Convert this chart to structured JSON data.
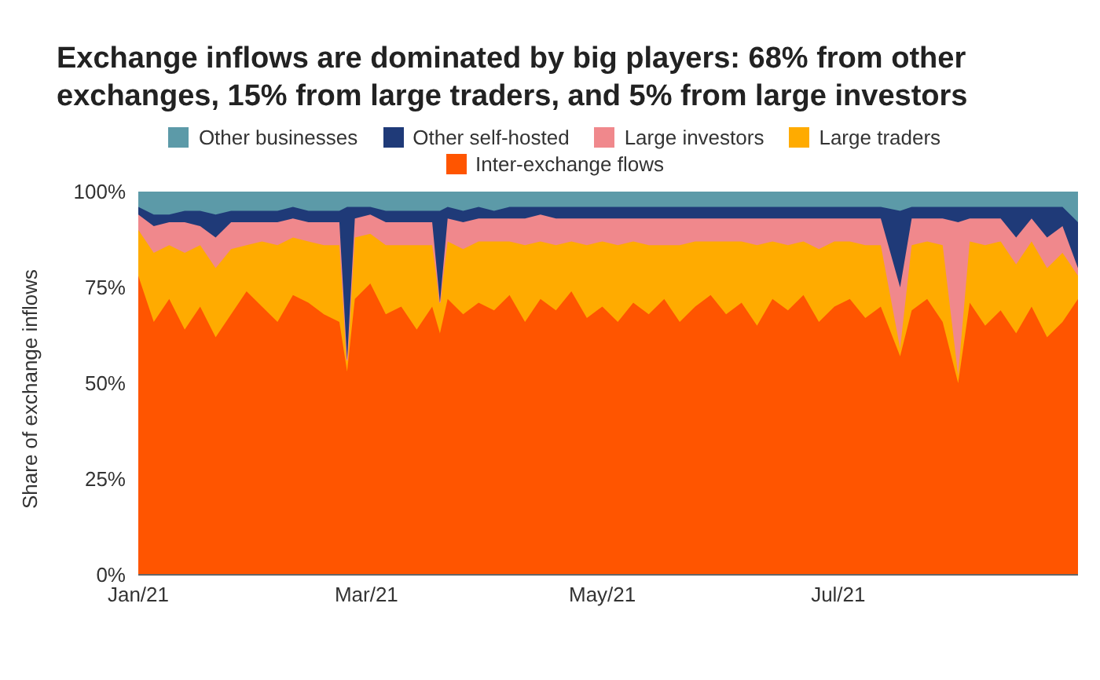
{
  "chart_data": {
    "type": "area",
    "title": "Exchange inflows are dominated by big players: 68% from other exchanges, 15% from large traders, and 5% from large investors",
    "ylabel": "Share of exchange inflows",
    "stacked": true,
    "legend": "top",
    "x": [
      "2021-01-01",
      "2021-01-05",
      "2021-01-09",
      "2021-01-13",
      "2021-01-17",
      "2021-01-21",
      "2021-01-25",
      "2021-01-29",
      "2021-02-02",
      "2021-02-06",
      "2021-02-10",
      "2021-02-14",
      "2021-02-18",
      "2021-02-22",
      "2021-02-24",
      "2021-02-26",
      "2021-03-02",
      "2021-03-06",
      "2021-03-10",
      "2021-03-14",
      "2021-03-18",
      "2021-03-20",
      "2021-03-22",
      "2021-03-26",
      "2021-03-30",
      "2021-04-03",
      "2021-04-07",
      "2021-04-11",
      "2021-04-15",
      "2021-04-19",
      "2021-04-23",
      "2021-04-27",
      "2021-05-01",
      "2021-05-05",
      "2021-05-09",
      "2021-05-13",
      "2021-05-17",
      "2021-05-21",
      "2021-05-25",
      "2021-05-29",
      "2021-06-02",
      "2021-06-06",
      "2021-06-10",
      "2021-06-14",
      "2021-06-18",
      "2021-06-22",
      "2021-06-26",
      "2021-06-30",
      "2021-07-04",
      "2021-07-08",
      "2021-07-12",
      "2021-07-17",
      "2021-07-20",
      "2021-07-24",
      "2021-07-28",
      "2021-08-01",
      "2021-08-04",
      "2021-08-08",
      "2021-08-12",
      "2021-08-16",
      "2021-08-20",
      "2021-08-24",
      "2021-08-28",
      "2021-09-01"
    ],
    "series": [
      {
        "name": "Inter-exchange flows",
        "color": "#ff5500",
        "values": [
          78,
          66,
          72,
          64,
          70,
          62,
          68,
          74,
          70,
          66,
          73,
          71,
          68,
          66,
          53,
          72,
          76,
          68,
          70,
          64,
          70,
          63,
          72,
          68,
          71,
          69,
          73,
          66,
          72,
          69,
          74,
          67,
          70,
          66,
          71,
          68,
          72,
          66,
          70,
          73,
          68,
          71,
          65,
          72,
          69,
          73,
          66,
          70,
          72,
          67,
          70,
          57,
          69,
          72,
          66,
          50,
          71,
          65,
          69,
          63,
          70,
          62,
          66,
          72
        ]
      },
      {
        "name": "Large traders",
        "color": "#ffab00",
        "values": [
          12,
          18,
          14,
          20,
          16,
          18,
          17,
          12,
          17,
          20,
          15,
          16,
          18,
          20,
          3,
          16,
          13,
          18,
          16,
          22,
          16,
          8,
          15,
          17,
          16,
          18,
          14,
          20,
          15,
          17,
          13,
          19,
          17,
          20,
          16,
          18,
          14,
          20,
          17,
          14,
          19,
          16,
          21,
          15,
          17,
          14,
          19,
          17,
          15,
          19,
          16,
          2,
          17,
          15,
          20,
          2,
          16,
          21,
          18,
          18,
          17,
          18,
          18,
          6
        ]
      },
      {
        "name": "Large investors",
        "color": "#f0888c",
        "values": [
          4,
          7,
          6,
          8,
          5,
          8,
          7,
          6,
          5,
          6,
          5,
          5,
          6,
          6,
          0,
          5,
          5,
          6,
          6,
          6,
          6,
          0,
          6,
          7,
          6,
          6,
          6,
          7,
          7,
          7,
          6,
          7,
          6,
          7,
          6,
          7,
          7,
          7,
          6,
          6,
          6,
          6,
          7,
          6,
          7,
          6,
          8,
          6,
          6,
          7,
          7,
          16,
          7,
          6,
          7,
          40,
          6,
          7,
          6,
          7,
          6,
          8,
          7,
          2
        ]
      },
      {
        "name": "Other self-hosted",
        "color": "#1f3a78",
        "values": [
          2,
          3,
          2,
          3,
          4,
          6,
          3,
          3,
          3,
          3,
          3,
          3,
          3,
          3,
          40,
          3,
          2,
          3,
          3,
          3,
          3,
          24,
          3,
          3,
          3,
          2,
          3,
          3,
          2,
          3,
          3,
          3,
          3,
          3,
          3,
          3,
          3,
          3,
          3,
          3,
          3,
          3,
          3,
          3,
          3,
          3,
          3,
          3,
          3,
          3,
          3,
          20,
          3,
          3,
          3,
          4,
          3,
          3,
          3,
          8,
          3,
          8,
          5,
          12
        ]
      },
      {
        "name": "Other businesses",
        "color": "#5c9aa8",
        "values": [
          4,
          6,
          6,
          5,
          5,
          6,
          5,
          5,
          5,
          5,
          4,
          5,
          5,
          5,
          4,
          4,
          4,
          5,
          5,
          5,
          5,
          5,
          4,
          5,
          4,
          5,
          4,
          4,
          4,
          4,
          4,
          4,
          4,
          4,
          4,
          4,
          4,
          4,
          4,
          4,
          4,
          4,
          4,
          4,
          4,
          4,
          4,
          4,
          4,
          4,
          4,
          5,
          4,
          4,
          4,
          4,
          4,
          4,
          4,
          4,
          4,
          4,
          4,
          8
        ]
      }
    ],
    "xlim": [
      "2021-01-01",
      "2021-09-01"
    ],
    "xticks": [
      {
        "value": "2021-01-01",
        "label": "Jan/21"
      },
      {
        "value": "2021-03-01",
        "label": "Mar/21"
      },
      {
        "value": "2021-05-01",
        "label": "May/21"
      },
      {
        "value": "2021-07-01",
        "label": "Jul/21"
      }
    ],
    "ylim": [
      0,
      100
    ],
    "yticks": [
      {
        "value": 0,
        "label": "0%"
      },
      {
        "value": 25,
        "label": "25%"
      },
      {
        "value": 50,
        "label": "50%"
      },
      {
        "value": 75,
        "label": "75%"
      },
      {
        "value": 100,
        "label": "100%"
      }
    ]
  }
}
